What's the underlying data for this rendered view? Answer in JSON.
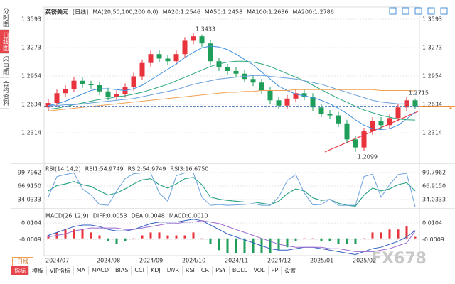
{
  "sidebar": [
    "分时图",
    "日线图",
    "闪电图",
    "合约资料"
  ],
  "period_tab": "日线",
  "toolbar": [
    "指标",
    "模板",
    "VIP指标",
    "MA",
    "MACD",
    "BIAS",
    "CCI",
    "KDJ",
    "LWR",
    "RSI",
    "CR",
    "PSY",
    "BOLL",
    "VOL",
    "PP",
    "设置"
  ],
  "watermark": "FX678",
  "chart_data": [
    {
      "type": "candlestick",
      "title": "英镑美元",
      "period": "[日线]",
      "indicator": "MA(20,50,100,200,0,0)",
      "categories": [
        "2024/07",
        null,
        null,
        null,
        null,
        null,
        "2024/08",
        null,
        null,
        null,
        null,
        "2024/09",
        null,
        null,
        null,
        null,
        "2024/10",
        null,
        null,
        null,
        null,
        "2024/11",
        null,
        null,
        null,
        null,
        "2024/12",
        null,
        null,
        null,
        null,
        "2025/01",
        null,
        null,
        null,
        null,
        "2025/02",
        null,
        null,
        null,
        null,
        null,
        null,
        null
      ],
      "open": [
        1.26,
        1.265,
        1.276,
        1.281,
        1.29,
        1.286,
        1.285,
        1.278,
        1.272,
        1.275,
        1.283,
        1.295,
        1.31,
        1.32,
        1.315,
        1.312,
        1.32,
        1.335,
        1.34,
        1.332,
        1.312,
        1.305,
        1.301,
        1.298,
        1.292,
        1.288,
        1.279,
        1.268,
        1.262,
        1.27,
        1.276,
        1.272,
        1.26,
        1.253,
        1.251,
        1.242,
        1.224,
        1.215,
        1.233,
        1.245,
        1.24,
        1.248,
        1.26,
        1.268
      ],
      "high": [
        1.269,
        1.28,
        1.285,
        1.294,
        1.294,
        1.29,
        1.289,
        1.282,
        1.279,
        1.287,
        1.299,
        1.314,
        1.324,
        1.324,
        1.319,
        1.324,
        1.339,
        1.3433,
        1.342,
        1.336,
        1.316,
        1.309,
        1.305,
        1.302,
        1.296,
        1.292,
        1.283,
        1.272,
        1.274,
        1.28,
        1.28,
        1.276,
        1.264,
        1.257,
        1.255,
        1.246,
        1.228,
        1.237,
        1.249,
        1.249,
        1.252,
        1.264,
        1.2715,
        1.27
      ],
      "low": [
        1.256,
        1.261,
        1.272,
        1.277,
        1.282,
        1.281,
        1.274,
        1.268,
        1.268,
        1.271,
        1.279,
        1.291,
        1.306,
        1.311,
        1.308,
        1.308,
        1.316,
        1.331,
        1.328,
        1.308,
        1.301,
        1.297,
        1.294,
        1.288,
        1.284,
        1.275,
        1.264,
        1.258,
        1.258,
        1.266,
        1.268,
        1.256,
        1.249,
        1.247,
        1.238,
        1.22,
        1.2099,
        1.211,
        1.229,
        1.236,
        1.236,
        1.244,
        1.256,
        1.258
      ],
      "close": [
        1.265,
        1.276,
        1.281,
        1.29,
        1.286,
        1.285,
        1.278,
        1.272,
        1.275,
        1.283,
        1.295,
        1.31,
        1.32,
        1.315,
        1.312,
        1.32,
        1.335,
        1.34,
        1.332,
        1.312,
        1.305,
        1.301,
        1.298,
        1.292,
        1.288,
        1.279,
        1.268,
        1.262,
        1.27,
        1.276,
        1.272,
        1.26,
        1.253,
        1.251,
        1.242,
        1.224,
        1.215,
        1.233,
        1.245,
        1.24,
        1.248,
        1.26,
        1.268,
        1.2613
      ],
      "up_color": "#e8323c",
      "down_color": "#1f9e5a",
      "series": [
        {
          "name": "MA20:1.2546",
          "color": "#3d8fe0",
          "values": [
            1.262,
            1.264,
            1.267,
            1.271,
            1.275,
            1.279,
            1.281,
            1.281,
            1.28,
            1.279,
            1.281,
            1.285,
            1.291,
            1.297,
            1.303,
            1.309,
            1.316,
            1.322,
            1.327,
            1.329,
            1.328,
            1.325,
            1.32,
            1.314,
            1.308,
            1.3,
            1.292,
            1.284,
            1.279,
            1.275,
            1.273,
            1.271,
            1.268,
            1.264,
            1.259,
            1.253,
            1.246,
            1.24,
            1.236,
            1.235,
            1.236,
            1.24,
            1.247,
            1.2546
          ]
        },
        {
          "name": "MA50:1.2458",
          "color": "#2aa87a",
          "values": [
            1.258,
            1.259,
            1.261,
            1.263,
            1.265,
            1.267,
            1.269,
            1.27,
            1.272,
            1.273,
            1.275,
            1.277,
            1.28,
            1.283,
            1.286,
            1.29,
            1.294,
            1.298,
            1.302,
            1.306,
            1.309,
            1.311,
            1.312,
            1.312,
            1.311,
            1.309,
            1.306,
            1.302,
            1.298,
            1.294,
            1.29,
            1.285,
            1.28,
            1.275,
            1.27,
            1.266,
            1.261,
            1.257,
            1.254,
            1.251,
            1.249,
            1.247,
            1.246,
            1.2458
          ]
        },
        {
          "name": "MA100:1.2636",
          "color": "#6aa0dc",
          "values": [
            1.262,
            1.262,
            1.263,
            1.263,
            1.264,
            1.265,
            1.266,
            1.267,
            1.268,
            1.269,
            1.27,
            1.272,
            1.274,
            1.276,
            1.278,
            1.28,
            1.283,
            1.286,
            1.288,
            1.29,
            1.292,
            1.293,
            1.294,
            1.295,
            1.296,
            1.296,
            1.295,
            1.294,
            1.293,
            1.292,
            1.29,
            1.288,
            1.286,
            1.283,
            1.28,
            1.277,
            1.274,
            1.271,
            1.268,
            1.266,
            1.265,
            1.264,
            1.264,
            1.2636
          ]
        },
        {
          "name": "MA200:1.2786",
          "color": "#f0a050",
          "values": [
            1.256,
            1.257,
            1.258,
            1.259,
            1.26,
            1.261,
            1.262,
            1.263,
            1.264,
            1.265,
            1.266,
            1.267,
            1.268,
            1.269,
            1.27,
            1.271,
            1.272,
            1.273,
            1.274,
            1.275,
            1.276,
            1.277,
            1.277,
            1.278,
            1.278,
            1.279,
            1.279,
            1.279,
            1.279,
            1.28,
            1.28,
            1.28,
            1.28,
            1.28,
            1.28,
            1.28,
            1.28,
            1.28,
            1.28,
            1.279,
            1.279,
            1.279,
            1.279,
            1.2786
          ]
        }
      ],
      "ylim": [
        1.1987,
        1.3729
      ],
      "yticks": [
        1.3593,
        1.3273,
        1.2954,
        1.2634,
        1.2314
      ],
      "annotations": [
        {
          "label": "1.3433",
          "value": 1.3433,
          "color": "#e8323c"
        },
        {
          "label": "1.2715",
          "value": 1.2715,
          "color": "#e8323c"
        },
        {
          "label": "1.2099",
          "value": 1.2099,
          "color": "#1f9e5a"
        }
      ]
    },
    {
      "type": "line",
      "title": "RSI(14,14,2)",
      "series": [
        {
          "name": "RSI1:54.9749",
          "color": "#3d8fe0",
          "values": [
            55,
            68,
            72,
            78,
            70,
            66,
            55,
            45,
            50,
            60,
            72,
            82,
            85,
            70,
            62,
            72,
            85,
            88,
            70,
            40,
            35,
            32,
            30,
            28,
            28,
            25,
            22,
            30,
            48,
            60,
            55,
            38,
            32,
            34,
            25,
            20,
            18,
            45,
            62,
            55,
            60,
            70,
            75,
            54.9749
          ]
        },
        {
          "name": "RSI2:54.9749",
          "color": "#2aa87a",
          "values": [
            55,
            68,
            72,
            78,
            70,
            66,
            55,
            45,
            50,
            60,
            72,
            82,
            85,
            70,
            62,
            72,
            85,
            88,
            70,
            40,
            35,
            32,
            30,
            28,
            28,
            25,
            22,
            30,
            48,
            60,
            55,
            38,
            32,
            34,
            25,
            20,
            18,
            45,
            62,
            55,
            60,
            70,
            75,
            54.9749
          ]
        },
        {
          "name": "RSI3:16.6750",
          "color": "#6aa0dc",
          "values": [
            40,
            90,
            95,
            99,
            60,
            45,
            22,
            20,
            55,
            85,
            97,
            99,
            99,
            50,
            30,
            92,
            99,
            99,
            40,
            20,
            22,
            20,
            21,
            22,
            24,
            20,
            20,
            40,
            80,
            95,
            50,
            21,
            22,
            35,
            20,
            20,
            20,
            90,
            96,
            40,
            70,
            95,
            98,
            16.675
          ]
        }
      ],
      "ylim": [
        14,
        118.83
      ],
      "yticks": [
        99.7962,
        {
          "value": 66.915,
          "label": "66.9150"
        },
        34.0333
      ]
    },
    {
      "type": "macd",
      "title": "MACD(26,12,9)",
      "series": [
        {
          "name": "DIFF:0.0053",
          "color": "#2f5fc0",
          "values": [
            0.002,
            0.004,
            0.006,
            0.008,
            0.009,
            0.009,
            0.008,
            0.006,
            0.005,
            0.005,
            0.006,
            0.008,
            0.01,
            0.011,
            0.011,
            0.011,
            0.012,
            0.013,
            0.012,
            0.009,
            0.006,
            0.003,
            0.001,
            -0.001,
            -0.003,
            -0.005,
            -0.007,
            -0.008,
            -0.008,
            -0.007,
            -0.006,
            -0.006,
            -0.007,
            -0.008,
            -0.009,
            -0.01,
            -0.011,
            -0.009,
            -0.007,
            -0.006,
            -0.004,
            -0.002,
            0.001,
            0.0053
          ]
        },
        {
          "name": "DEA:0.0048",
          "color": "#9a6ad0",
          "values": [
            0.001,
            0.002,
            0.003,
            0.005,
            0.006,
            0.007,
            0.007,
            0.007,
            0.007,
            0.006,
            0.006,
            0.007,
            0.008,
            0.009,
            0.01,
            0.01,
            0.011,
            0.011,
            0.012,
            0.011,
            0.01,
            0.008,
            0.006,
            0.004,
            0.002,
            0,
            -0.002,
            -0.004,
            -0.005,
            -0.006,
            -0.006,
            -0.006,
            -0.006,
            -0.007,
            -0.007,
            -0.008,
            -0.009,
            -0.009,
            -0.009,
            -0.008,
            -0.007,
            -0.005,
            -0.003,
            0.0048
          ]
        }
      ],
      "histogram": {
        "name": "MACD:0.0010",
        "color": "#3d8fe0",
        "up_color": "#e8323c",
        "down_color": "#1f9e5a",
        "values": [
          0.002,
          0.004,
          0.006,
          0.006,
          0.006,
          0.004,
          0.002,
          -0.002,
          -0.004,
          -0.002,
          0,
          0.002,
          0.004,
          0.004,
          0.002,
          0.002,
          0.002,
          0.004,
          0,
          -0.004,
          -0.008,
          -0.01,
          -0.01,
          -0.01,
          -0.01,
          -0.01,
          -0.01,
          -0.008,
          -0.006,
          -0.002,
          0,
          0,
          -0.002,
          -0.002,
          -0.004,
          -0.004,
          -0.004,
          0,
          0.004,
          0.004,
          0.006,
          0.006,
          0.008,
          0.001
        ]
      },
      "ylim": [
        -0.0117,
        0.0191
      ],
      "yticks": [
        0.0104,
        -0.0009
      ]
    }
  ]
}
